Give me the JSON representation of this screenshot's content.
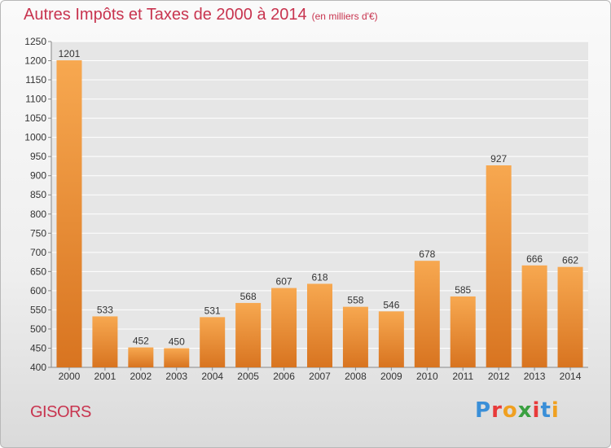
{
  "header": {
    "title": "Autres Impôts et Taxes de 2000 à 2014",
    "unit": "(en milliers d'€)"
  },
  "footer": {
    "city": "GISORS",
    "brand": "Proxiti",
    "brand_colors": [
      "#3a8fd8",
      "#e83a3a",
      "#f0a020",
      "#3aa040",
      "#e83a3a",
      "#3a8fd8",
      "#f0a020"
    ]
  },
  "colors": {
    "title": "#c8344f",
    "bar_light": "#f7a850",
    "bar_dark": "#d87420",
    "grid": "#ffffff",
    "axis_text": "#333333"
  },
  "chart_data": {
    "type": "bar",
    "title": "Autres Impôts et Taxes de 2000 à 2014",
    "subtitle": "(en milliers d'€)",
    "categories": [
      "2000",
      "2001",
      "2002",
      "2003",
      "2004",
      "2005",
      "2006",
      "2007",
      "2008",
      "2009",
      "2010",
      "2011",
      "2012",
      "2013",
      "2014"
    ],
    "values": [
      1201,
      533,
      452,
      450,
      531,
      568,
      607,
      618,
      558,
      546,
      678,
      585,
      927,
      666,
      662
    ],
    "ylim": [
      400,
      1250
    ],
    "ytick_step": 50,
    "grid": true,
    "data_labels": true
  }
}
